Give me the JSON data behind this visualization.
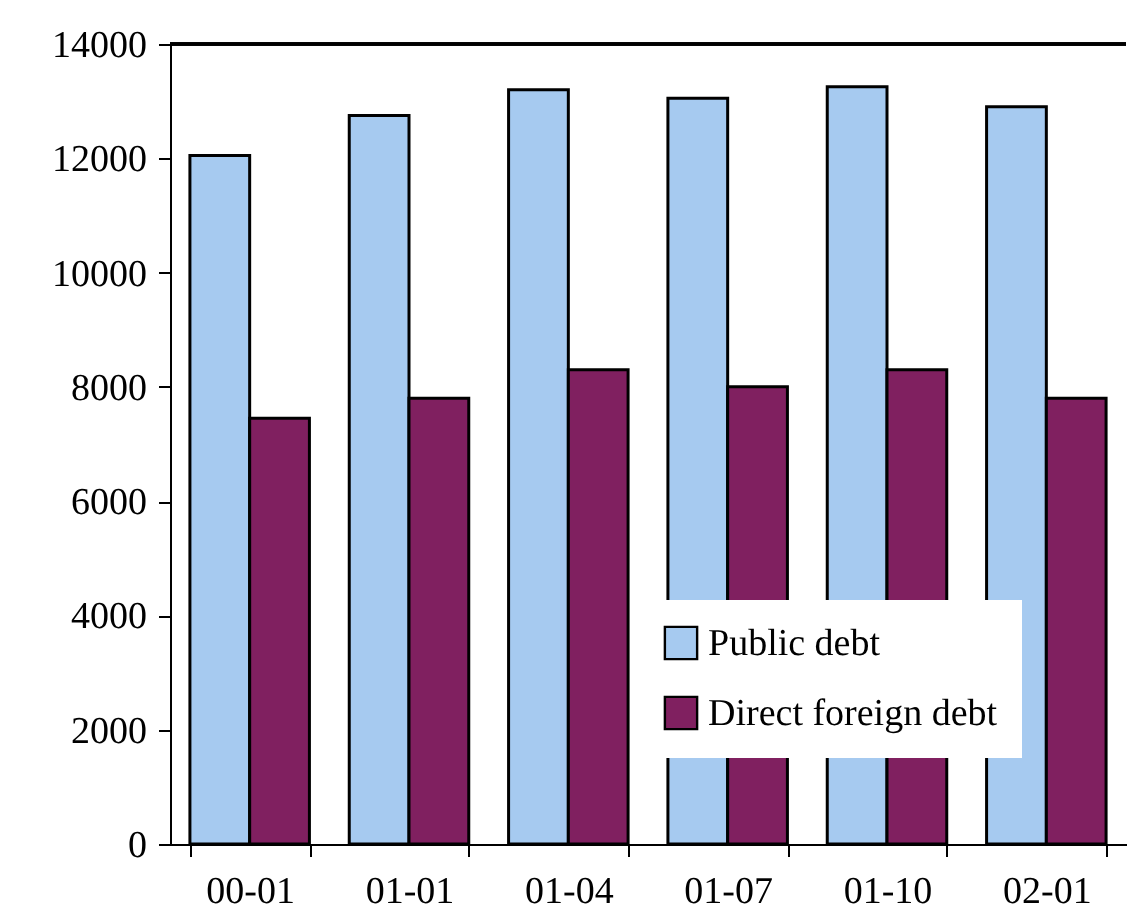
{
  "chart_data": {
    "type": "bar",
    "categories": [
      "00-01",
      "01-01",
      "01-04",
      "01-07",
      "01-10",
      "02-01"
    ],
    "series": [
      {
        "name": "Public debt",
        "color": "#a6caf0",
        "values": [
          12050,
          12750,
          13200,
          13050,
          13250,
          12900
        ]
      },
      {
        "name": "Direct foreign debt",
        "color": "#802060",
        "values": [
          7450,
          7800,
          8300,
          8000,
          8300,
          7800
        ]
      }
    ],
    "ylim": [
      0,
      14000
    ],
    "yticks": [
      0,
      2000,
      4000,
      6000,
      8000,
      10000,
      12000,
      14000
    ],
    "grid": false,
    "legend": "bottom right"
  }
}
